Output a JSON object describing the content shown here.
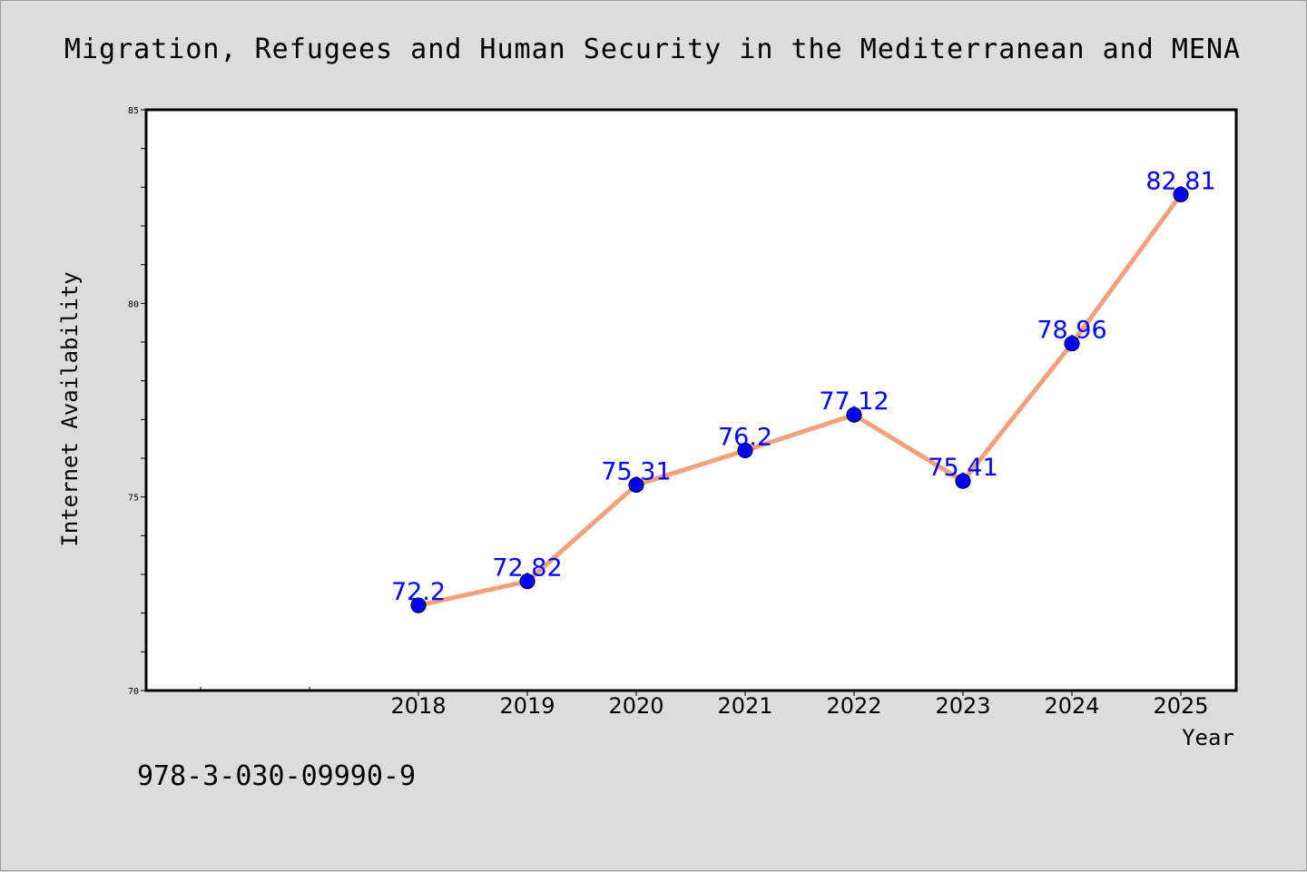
{
  "chart_data": {
    "type": "line",
    "title": "Migration, Refugees and Human Security in the Mediterranean and MENA",
    "xlabel": "Year",
    "ylabel": "Internet Availability",
    "categories": [
      "2018",
      "2019",
      "2020",
      "2021",
      "2022",
      "2023",
      "2024",
      "2025"
    ],
    "values": [
      72.2,
      72.82,
      75.31,
      76.2,
      77.12,
      75.41,
      78.96,
      82.81
    ],
    "data_labels": [
      "72.2",
      "72.82",
      "75.31",
      "76.2",
      "77.12",
      "75.41",
      "78.96",
      "82.81"
    ],
    "ylim": [
      70,
      85
    ],
    "yticks": [
      "70",
      "75",
      "80",
      "85"
    ],
    "grid": false,
    "legend": "none",
    "line_color": "#f4a07c",
    "marker_color": "#0000ff",
    "label_color": "#0000ff"
  },
  "footer": {
    "isbn": "978-3-030-09990-9"
  }
}
